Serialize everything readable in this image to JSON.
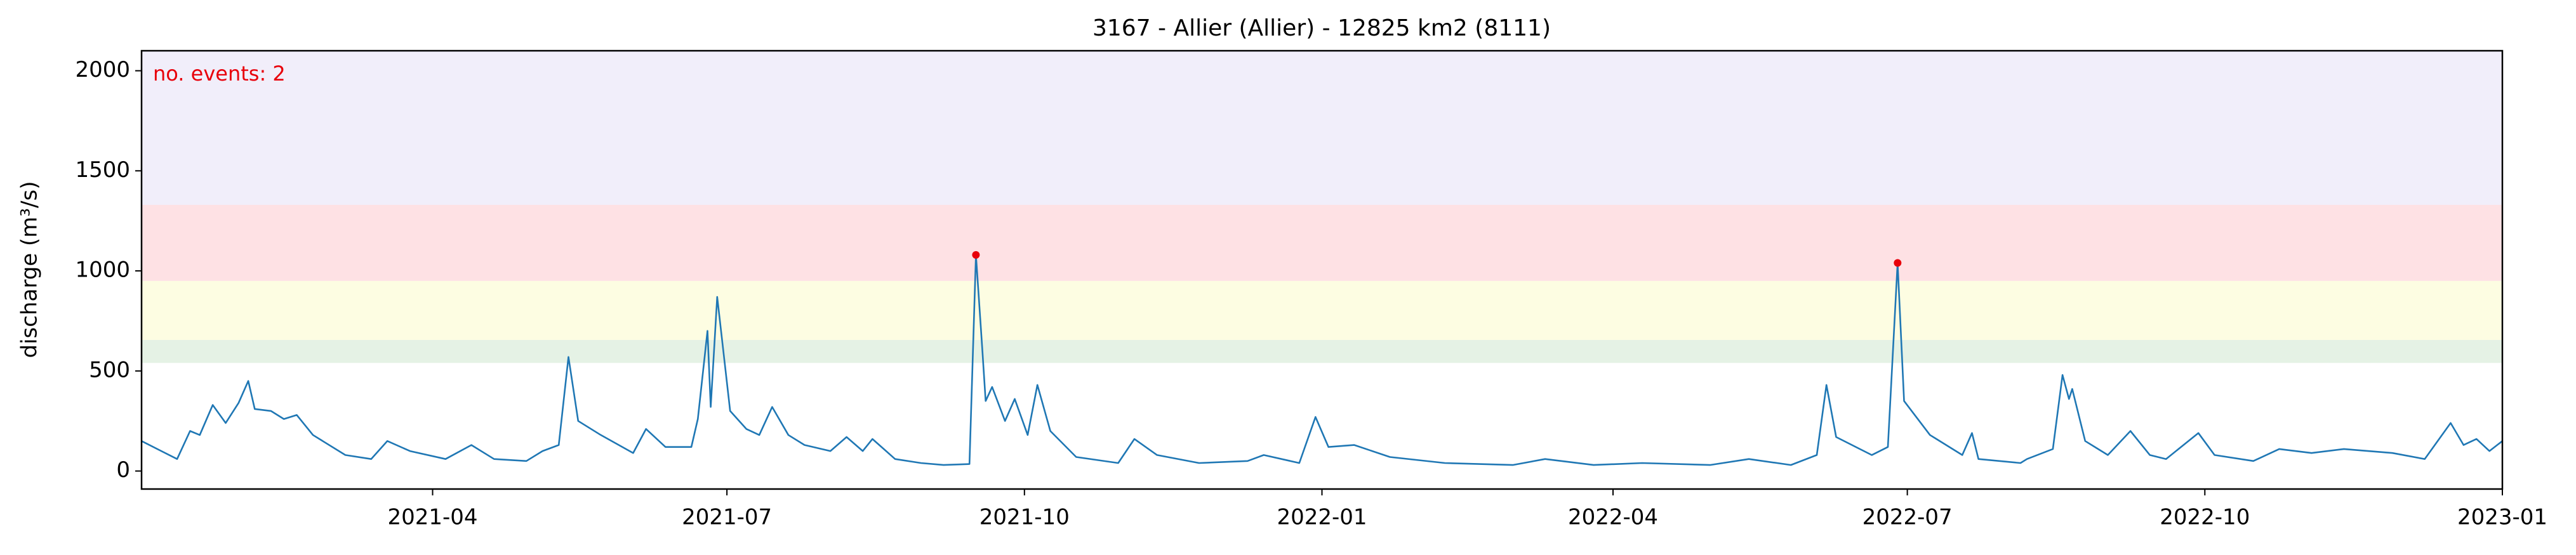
{
  "chart_data": {
    "type": "line",
    "title": "3167 - Allier (Allier) - 12825 km2 (8111)",
    "y_label": "discharge (m³/s)",
    "annotation": "no. events: 2",
    "annotation_color": "#e8000b",
    "xlim": [
      "2021-01-01",
      "2023-01-01"
    ],
    "xticks": [
      {
        "value": "2021-04-01",
        "label": "2021-04"
      },
      {
        "value": "2021-07-01",
        "label": "2021-07"
      },
      {
        "value": "2021-10-01",
        "label": "2021-10"
      },
      {
        "value": "2022-01-01",
        "label": "2022-01"
      },
      {
        "value": "2022-04-01",
        "label": "2022-04"
      },
      {
        "value": "2022-07-01",
        "label": "2022-07"
      },
      {
        "value": "2022-10-01",
        "label": "2022-10"
      },
      {
        "value": "2023-01-01",
        "label": "2023-01"
      }
    ],
    "ylim": [
      -90,
      2100
    ],
    "yticks": [
      0,
      500,
      1000,
      1500,
      2000
    ],
    "bands": [
      {
        "from": 540,
        "to": 655,
        "color": "#e5f2e5"
      },
      {
        "from": 655,
        "to": 950,
        "color": "#fdfde2"
      },
      {
        "from": 950,
        "to": 1330,
        "color": "#fee1e4"
      },
      {
        "from": 1330,
        "to": 2100,
        "color": "#f1eefa"
      }
    ],
    "series": [
      {
        "color": "#1f77b4",
        "x": [
          "2021-01-01",
          "2021-01-12",
          "2021-01-16",
          "2021-01-19",
          "2021-01-23",
          "2021-01-27",
          "2021-01-31",
          "2021-02-03",
          "2021-02-05",
          "2021-02-10",
          "2021-02-14",
          "2021-02-18",
          "2021-02-23",
          "2021-03-05",
          "2021-03-13",
          "2021-03-18",
          "2021-03-25",
          "2021-04-05",
          "2021-04-13",
          "2021-04-20",
          "2021-04-30",
          "2021-05-05",
          "2021-05-10",
          "2021-05-13",
          "2021-05-16",
          "2021-05-23",
          "2021-06-02",
          "2021-06-06",
          "2021-06-12",
          "2021-06-20",
          "2021-06-22",
          "2021-06-25",
          "2021-06-26",
          "2021-06-28",
          "2021-07-02",
          "2021-07-07",
          "2021-07-11",
          "2021-07-15",
          "2021-07-20",
          "2021-07-25",
          "2021-08-02",
          "2021-08-07",
          "2021-08-12",
          "2021-08-15",
          "2021-08-22",
          "2021-08-30",
          "2021-09-06",
          "2021-09-14",
          "2021-09-16",
          "2021-09-18",
          "2021-09-19",
          "2021-09-21",
          "2021-09-25",
          "2021-09-28",
          "2021-10-02",
          "2021-10-05",
          "2021-10-09",
          "2021-10-17",
          "2021-10-30",
          "2021-11-04",
          "2021-11-11",
          "2021-11-24",
          "2021-12-09",
          "2021-12-14",
          "2021-12-25",
          "2021-12-30",
          "2022-01-03",
          "2022-01-11",
          "2022-01-22",
          "2022-02-08",
          "2022-03-01",
          "2022-03-11",
          "2022-03-26",
          "2022-04-10",
          "2022-05-01",
          "2022-05-13",
          "2022-05-26",
          "2022-06-03",
          "2022-06-06",
          "2022-06-09",
          "2022-06-20",
          "2022-06-25",
          "2022-06-28",
          "2022-06-30",
          "2022-07-08",
          "2022-07-18",
          "2022-07-21",
          "2022-07-23",
          "2022-08-05",
          "2022-08-07",
          "2022-08-15",
          "2022-08-18",
          "2022-08-20",
          "2022-08-21",
          "2022-08-25",
          "2022-09-01",
          "2022-09-08",
          "2022-09-14",
          "2022-09-19",
          "2022-09-29",
          "2022-10-04",
          "2022-10-16",
          "2022-10-24",
          "2022-11-03",
          "2022-11-13",
          "2022-11-28",
          "2022-12-08",
          "2022-12-16",
          "2022-12-20",
          "2022-12-24",
          "2022-12-28",
          "2023-01-01"
        ],
        "values": [
          150,
          60,
          200,
          180,
          330,
          240,
          340,
          450,
          310,
          300,
          260,
          280,
          180,
          80,
          60,
          150,
          100,
          60,
          130,
          60,
          50,
          100,
          130,
          570,
          250,
          180,
          90,
          210,
          120,
          120,
          260,
          700,
          320,
          870,
          300,
          210,
          180,
          320,
          180,
          130,
          100,
          170,
          100,
          160,
          60,
          40,
          30,
          35,
          1080,
          600,
          350,
          420,
          250,
          360,
          180,
          430,
          200,
          70,
          40,
          160,
          80,
          40,
          50,
          80,
          40,
          270,
          120,
          130,
          70,
          40,
          30,
          60,
          30,
          40,
          30,
          60,
          30,
          80,
          430,
          170,
          80,
          120,
          1040,
          350,
          180,
          80,
          190,
          60,
          40,
          60,
          110,
          480,
          360,
          410,
          150,
          80,
          200,
          80,
          60,
          190,
          80,
          50,
          110,
          90,
          110,
          90,
          60,
          240,
          130,
          160,
          100,
          150
        ]
      },
      {
        "color": "#e8000b",
        "marker": true,
        "x": [
          "2021-09-16",
          "2022-06-28"
        ],
        "values": [
          1080,
          1040
        ]
      }
    ]
  }
}
